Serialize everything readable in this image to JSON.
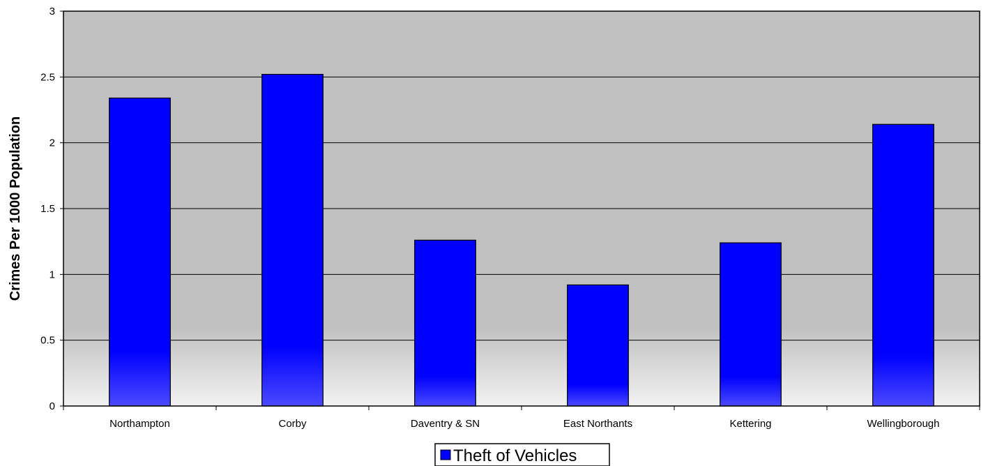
{
  "chart_data": {
    "type": "bar",
    "title": "",
    "xlabel": "",
    "ylabel": "Crimes Per 1000 Population",
    "categories": [
      "Northampton",
      "Corby",
      "Daventry & SN",
      "East Northants",
      "Kettering",
      "Wellingborough"
    ],
    "series": [
      {
        "name": "Theft of Vehicles",
        "values": [
          2.34,
          2.52,
          1.26,
          0.92,
          1.24,
          2.14
        ]
      }
    ],
    "ylim": [
      0,
      3
    ],
    "yticks": [
      0,
      0.5,
      1,
      1.5,
      2,
      2.5,
      3
    ],
    "ytick_labels": [
      "0",
      "0.5",
      "1",
      "1.5",
      "2",
      "2.5",
      "3"
    ],
    "grid": true,
    "legend": "bottom-center",
    "colors": {
      "bar": "#0000ff",
      "bar_light": "#4a4aff",
      "plot_background": "#c0c0c0",
      "plot_background_bottom": "#f2f2f2",
      "gridline": "#000000"
    }
  }
}
